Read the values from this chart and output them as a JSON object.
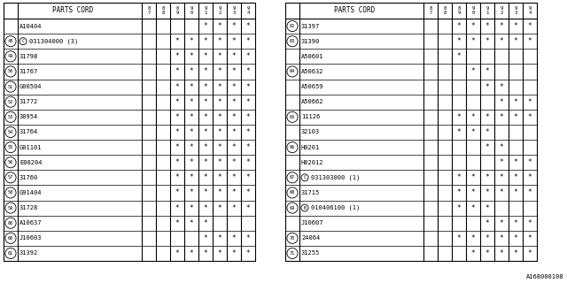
{
  "left_table": {
    "rows": [
      {
        "num": "",
        "part": "A10404",
        "marks": [
          0,
          0,
          0,
          0,
          1,
          1,
          1,
          1
        ],
        "sym": ""
      },
      {
        "num": "48",
        "part": "031304000 (3)",
        "marks": [
          0,
          0,
          1,
          1,
          1,
          1,
          1,
          1
        ],
        "sym": "C"
      },
      {
        "num": "49",
        "part": "31798",
        "marks": [
          0,
          0,
          1,
          1,
          1,
          1,
          1,
          1
        ],
        "sym": ""
      },
      {
        "num": "50",
        "part": "31767",
        "marks": [
          0,
          0,
          1,
          1,
          1,
          1,
          1,
          1
        ],
        "sym": ""
      },
      {
        "num": "51",
        "part": "G00504",
        "marks": [
          0,
          0,
          1,
          1,
          1,
          1,
          1,
          1
        ],
        "sym": ""
      },
      {
        "num": "52",
        "part": "31772",
        "marks": [
          0,
          0,
          1,
          1,
          1,
          1,
          1,
          1
        ],
        "sym": ""
      },
      {
        "num": "53",
        "part": "30954",
        "marks": [
          0,
          0,
          1,
          1,
          1,
          1,
          1,
          1
        ],
        "sym": ""
      },
      {
        "num": "54",
        "part": "31764",
        "marks": [
          0,
          0,
          1,
          1,
          1,
          1,
          1,
          1
        ],
        "sym": ""
      },
      {
        "num": "55",
        "part": "G01101",
        "marks": [
          0,
          0,
          1,
          1,
          1,
          1,
          1,
          1
        ],
        "sym": ""
      },
      {
        "num": "56",
        "part": "E00204",
        "marks": [
          0,
          0,
          1,
          1,
          1,
          1,
          1,
          1
        ],
        "sym": ""
      },
      {
        "num": "57",
        "part": "31760",
        "marks": [
          0,
          0,
          1,
          1,
          1,
          1,
          1,
          1
        ],
        "sym": ""
      },
      {
        "num": "58",
        "part": "G91404",
        "marks": [
          0,
          0,
          1,
          1,
          1,
          1,
          1,
          1
        ],
        "sym": ""
      },
      {
        "num": "59",
        "part": "31728",
        "marks": [
          0,
          0,
          1,
          1,
          1,
          1,
          1,
          1
        ],
        "sym": ""
      },
      {
        "num": "60",
        "part": "A10637",
        "marks": [
          0,
          0,
          1,
          1,
          1,
          0,
          0,
          0
        ],
        "sym": ""
      },
      {
        "num": "60",
        "part": "J10603",
        "marks": [
          0,
          0,
          0,
          0,
          1,
          1,
          1,
          1
        ],
        "sym": ""
      },
      {
        "num": "61",
        "part": "31392",
        "marks": [
          0,
          0,
          1,
          1,
          1,
          1,
          1,
          1
        ],
        "sym": ""
      }
    ]
  },
  "right_table": {
    "rows": [
      {
        "num": "62",
        "part": "31397",
        "marks": [
          0,
          0,
          1,
          1,
          1,
          1,
          1,
          1
        ],
        "sym": ""
      },
      {
        "num": "63",
        "part": "31390",
        "marks": [
          0,
          0,
          1,
          1,
          1,
          1,
          1,
          1
        ],
        "sym": ""
      },
      {
        "num": "",
        "part": "A50601",
        "marks": [
          0,
          0,
          1,
          0,
          0,
          0,
          0,
          0
        ],
        "sym": ""
      },
      {
        "num": "64",
        "part": "A50632",
        "marks": [
          0,
          0,
          0,
          1,
          1,
          0,
          0,
          0
        ],
        "sym": ""
      },
      {
        "num": "",
        "part": "A50659",
        "marks": [
          0,
          0,
          0,
          0,
          1,
          1,
          0,
          0
        ],
        "sym": ""
      },
      {
        "num": "",
        "part": "A50662",
        "marks": [
          0,
          0,
          0,
          0,
          0,
          1,
          1,
          1
        ],
        "sym": ""
      },
      {
        "num": "65",
        "part": "11126",
        "marks": [
          0,
          0,
          1,
          1,
          1,
          1,
          1,
          1
        ],
        "sym": ""
      },
      {
        "num": "",
        "part": "32103",
        "marks": [
          0,
          0,
          1,
          1,
          1,
          0,
          0,
          0
        ],
        "sym": ""
      },
      {
        "num": "66",
        "part": "H0201",
        "marks": [
          0,
          0,
          0,
          0,
          1,
          1,
          0,
          0
        ],
        "sym": ""
      },
      {
        "num": "",
        "part": "H02012",
        "marks": [
          0,
          0,
          0,
          0,
          0,
          1,
          1,
          1
        ],
        "sym": ""
      },
      {
        "num": "67",
        "part": "031303000 (1)",
        "marks": [
          0,
          0,
          1,
          1,
          1,
          1,
          1,
          1
        ],
        "sym": "C"
      },
      {
        "num": "68",
        "part": "31715",
        "marks": [
          0,
          0,
          1,
          1,
          1,
          1,
          1,
          1
        ],
        "sym": ""
      },
      {
        "num": "69",
        "part": "010406100 (1)",
        "marks": [
          0,
          0,
          1,
          1,
          1,
          0,
          0,
          0
        ],
        "sym": "B"
      },
      {
        "num": "",
        "part": "J10607",
        "marks": [
          0,
          0,
          0,
          0,
          1,
          1,
          1,
          1
        ],
        "sym": ""
      },
      {
        "num": "70",
        "part": "24064",
        "marks": [
          0,
          0,
          1,
          1,
          1,
          1,
          1,
          1
        ],
        "sym": ""
      },
      {
        "num": "71",
        "part": "31255",
        "marks": [
          0,
          0,
          0,
          1,
          1,
          1,
          1,
          1
        ],
        "sym": ""
      }
    ]
  },
  "year_headers": [
    "8\n7",
    "8\n8",
    "8\n9",
    "9\n0",
    "9\n1",
    "9\n2",
    "9\n3",
    "9\n4"
  ],
  "footer": "A168000108",
  "bg_color": "#ffffff",
  "line_color": "#000000",
  "text_color": "#000000"
}
